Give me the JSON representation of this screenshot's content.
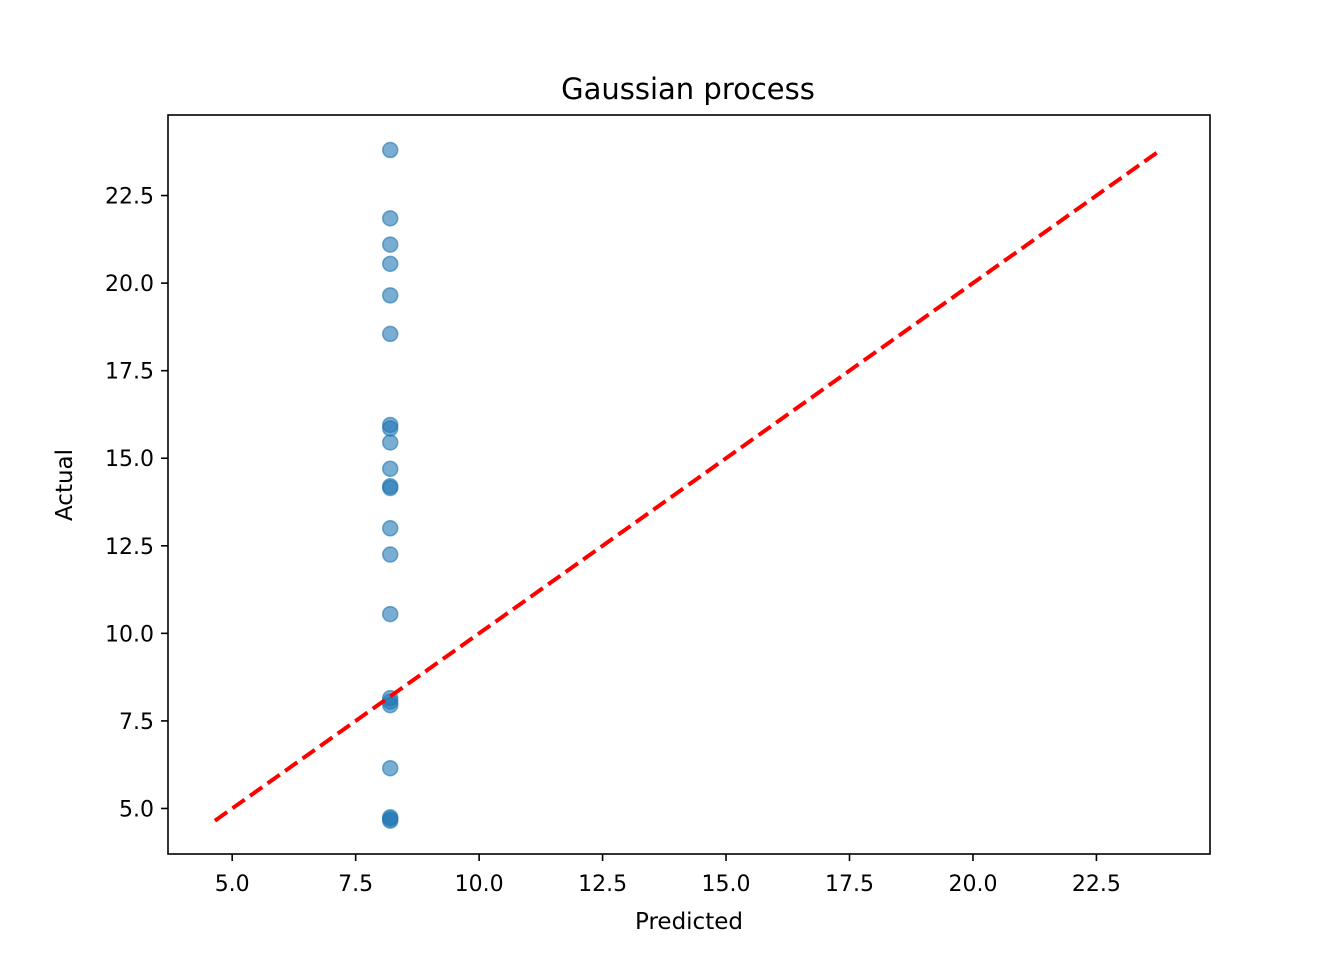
{
  "chart_data": {
    "type": "scatter",
    "title": "Gaussian process",
    "xlabel": "Predicted",
    "ylabel": "Actual",
    "xlim": [
      3.7,
      24.8
    ],
    "ylim": [
      3.7,
      24.8
    ],
    "xticks": [
      5.0,
      7.5,
      10.0,
      12.5,
      15.0,
      17.5,
      20.0,
      22.5
    ],
    "yticks": [
      5.0,
      7.5,
      10.0,
      12.5,
      15.0,
      17.5,
      20.0,
      22.5
    ],
    "xtick_labels": [
      "5.0",
      "7.5",
      "10.0",
      "12.5",
      "15.0",
      "17.5",
      "20.0",
      "22.5"
    ],
    "ytick_labels": [
      "5.0",
      "7.5",
      "10.0",
      "12.5",
      "15.0",
      "17.5",
      "20.0",
      "22.5"
    ],
    "grid": false,
    "points": {
      "color": "#1f77b4",
      "x": [
        8.2,
        8.2,
        8.2,
        8.2,
        8.2,
        8.2,
        8.2,
        8.2,
        8.2,
        8.2,
        8.2,
        8.2,
        8.2,
        8.2,
        8.2,
        8.2,
        8.2,
        8.2,
        8.2,
        8.2,
        8.2,
        8.2
      ],
      "y": [
        23.8,
        21.85,
        21.1,
        20.55,
        19.65,
        18.55,
        15.95,
        15.85,
        15.45,
        14.7,
        14.2,
        14.15,
        13.0,
        12.25,
        10.55,
        8.15,
        8.05,
        7.95,
        6.15,
        4.75,
        4.7,
        4.65
      ]
    },
    "reference_line": {
      "style": "dashed",
      "color": "#ff0000",
      "x": [
        4.65,
        23.8
      ],
      "y": [
        4.65,
        23.8
      ]
    }
  }
}
